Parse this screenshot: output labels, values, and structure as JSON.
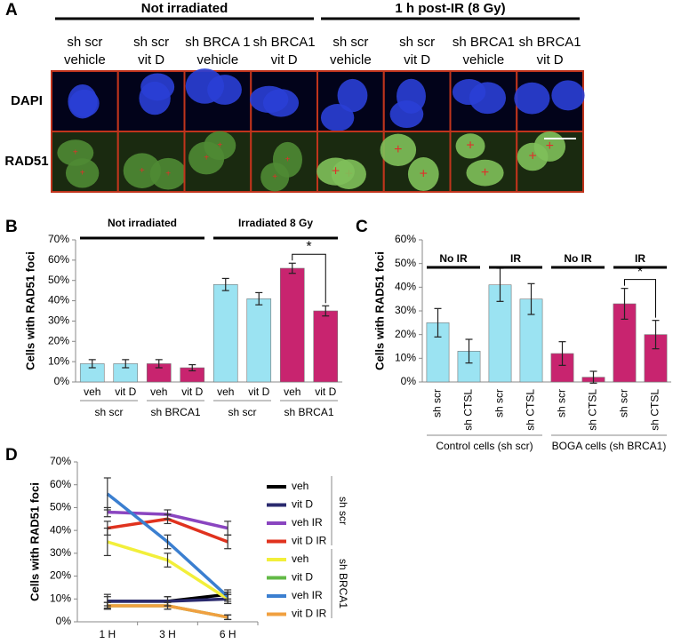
{
  "panel_a": {
    "label": "A",
    "groups": [
      "Not irradiated",
      "1 h post-IR (8 Gy)"
    ],
    "columns": [
      [
        "sh scr",
        "vehicle"
      ],
      [
        "sh scr",
        "vit D"
      ],
      [
        "sh BRCA 1",
        "vehicle"
      ],
      [
        "sh BRCA1",
        "vit D"
      ],
      [
        "sh scr",
        "vehicle"
      ],
      [
        "sh scr",
        "vit D"
      ],
      [
        "sh BRCA1",
        "vehicle"
      ],
      [
        "sh BRCA1",
        "vit D"
      ]
    ],
    "rows": [
      "DAPI",
      "RAD51"
    ]
  },
  "chart_data": [
    {
      "type": "bar",
      "label": "B",
      "ylabel": "Cells with RAD51 foci",
      "categories": [
        "veh",
        "vit D",
        "veh",
        "vit D",
        "veh",
        "vit D",
        "veh",
        "vit D"
      ],
      "values": [
        9,
        9,
        9,
        7,
        48,
        41,
        56,
        35
      ],
      "errors": [
        2,
        2,
        2,
        1.5,
        3,
        3,
        2.5,
        2.5
      ],
      "colors": [
        "#9be3f2",
        "#9be3f2",
        "#c8246f",
        "#c8246f",
        "#9be3f2",
        "#9be3f2",
        "#c8246f",
        "#c8246f"
      ],
      "top_groups": [
        "Not irradiated",
        "Irradiated 8 Gy"
      ],
      "bottom_groups": [
        "sh scr",
        "sh BRCA1",
        "sh scr",
        "sh BRCA1"
      ],
      "annotation": "*",
      "ylim": [
        0,
        70
      ],
      "yticks": [
        {
          "value": 0,
          "label": "0%"
        },
        {
          "value": 10,
          "label": "10%"
        },
        {
          "value": 20,
          "label": "20%"
        },
        {
          "value": 30,
          "label": "30%"
        },
        {
          "value": 40,
          "label": "40%"
        },
        {
          "value": 50,
          "label": "50%"
        },
        {
          "value": 60,
          "label": "60%"
        },
        {
          "value": 70,
          "label": "70%"
        }
      ],
      "grid": false
    },
    {
      "type": "bar",
      "label": "C",
      "ylabel": "Cells with RAD51 foci",
      "categories": [
        "sh scr",
        "sh CTSL",
        "sh scr",
        "sh CTSL",
        "sh scr",
        "sh CTSL",
        "sh scr",
        "sh CTSL"
      ],
      "values": [
        25,
        13,
        41,
        35,
        12,
        2,
        33,
        20
      ],
      "errors": [
        6,
        5,
        7,
        6.5,
        5,
        2.5,
        6.5,
        6
      ],
      "colors": [
        "#9be3f2",
        "#9be3f2",
        "#9be3f2",
        "#9be3f2",
        "#c8246f",
        "#c8246f",
        "#c8246f",
        "#c8246f"
      ],
      "top_groups": [
        "No IR",
        "IR",
        "No IR",
        "IR"
      ],
      "bottom_groups": [
        "Control cells (sh scr)",
        "BOGA cells (sh BRCA1)"
      ],
      "annotation": "*",
      "ylim": [
        0,
        60
      ],
      "yticks": [
        {
          "value": 0,
          "label": "0%"
        },
        {
          "value": 10,
          "label": "10%"
        },
        {
          "value": 20,
          "label": "20%"
        },
        {
          "value": 30,
          "label": "30%"
        },
        {
          "value": 40,
          "label": "40%"
        },
        {
          "value": 50,
          "label": "50%"
        },
        {
          "value": 60,
          "label": "60%"
        }
      ],
      "grid": false
    },
    {
      "type": "line",
      "label": "D",
      "ylabel": "Cells with RAD51 foci",
      "categories": [
        "1 H",
        "3 H",
        "6 H"
      ],
      "series": [
        {
          "name": "veh",
          "color": "#000000",
          "values": [
            9,
            9,
            12
          ],
          "errors": [
            3,
            2,
            2
          ]
        },
        {
          "name": "vit D",
          "color": "#2a2a6e",
          "values": [
            9,
            9,
            10
          ],
          "errors": [
            2,
            2,
            2
          ]
        },
        {
          "name": "veh IR",
          "color": "#8a45c0",
          "values": [
            48,
            47,
            41
          ],
          "errors": [
            2,
            2,
            3
          ]
        },
        {
          "name": "vit D IR",
          "color": "#e0321e",
          "values": [
            41,
            45,
            35
          ],
          "errors": [
            3,
            2,
            3
          ]
        },
        {
          "name": "veh",
          "color": "#f2ef3a",
          "values": [
            35,
            27,
            10
          ],
          "errors": [
            6,
            3,
            2
          ]
        },
        {
          "name": "vit D",
          "color": "#62b946",
          "values": [
            7,
            7,
            2
          ],
          "errors": [
            1.5,
            1.5,
            1
          ]
        },
        {
          "name": "veh IR",
          "color": "#3b7fd0",
          "values": [
            56,
            35,
            11
          ],
          "errors": [
            7,
            3,
            2
          ]
        },
        {
          "name": "vit D IR",
          "color": "#f0a040",
          "values": [
            7,
            7,
            2
          ],
          "errors": [
            1.5,
            1.5,
            1
          ]
        }
      ],
      "legend_groups": [
        "sh scr",
        "sh BRCA1"
      ],
      "ylim": [
        0,
        70
      ],
      "yticks": [
        {
          "value": 0,
          "label": "0%"
        },
        {
          "value": 10,
          "label": "10%"
        },
        {
          "value": 20,
          "label": "20%"
        },
        {
          "value": 30,
          "label": "30%"
        },
        {
          "value": 40,
          "label": "40%"
        },
        {
          "value": 50,
          "label": "50%"
        },
        {
          "value": 60,
          "label": "60%"
        },
        {
          "value": 70,
          "label": "70%"
        }
      ],
      "grid": false
    }
  ]
}
